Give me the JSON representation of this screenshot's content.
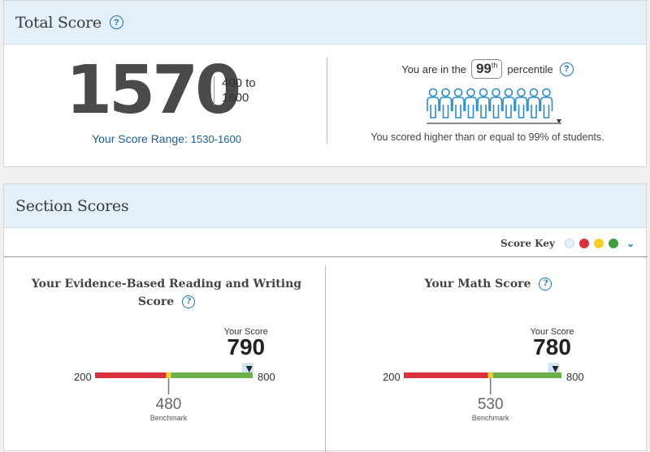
{
  "total": {
    "title": "Total Score",
    "score": "1570",
    "range_min": "400 to",
    "range_max": "1600",
    "score_range_label": "Your Score Range:",
    "score_range_value": "1530-1600",
    "percentile_prefix": "You are in the",
    "percentile_value": "99",
    "percentile_suffix": "th",
    "percentile_word": "percentile",
    "percentile_note": "You scored higher than or equal to 99% of students."
  },
  "section": {
    "title": "Section Scores",
    "score_key_label": "Score Key",
    "score_key_colors": [
      "#e3f0f9",
      "#d9313d",
      "#f5cf2a",
      "#3f9c3f"
    ],
    "reading": {
      "title_line1": "Your Evidence-Based Reading and Writing",
      "title_line2": "Score",
      "min": "200",
      "max": "800",
      "your_score_label": "Your Score",
      "score": "790",
      "score_value": 790,
      "benchmark": "480",
      "benchmark_value": 480,
      "benchmark_label": "Benchmark"
    },
    "math": {
      "title": "Your Math Score",
      "min": "200",
      "max": "800",
      "your_score_label": "Your Score",
      "score": "780",
      "score_value": 780,
      "benchmark": "530",
      "benchmark_value": 530,
      "benchmark_label": "Benchmark"
    }
  },
  "colors": {
    "red": "#d9313d",
    "yellow": "#f5cf2a",
    "green": "#6ab04c",
    "range_highlight": "#cfe5f3"
  }
}
